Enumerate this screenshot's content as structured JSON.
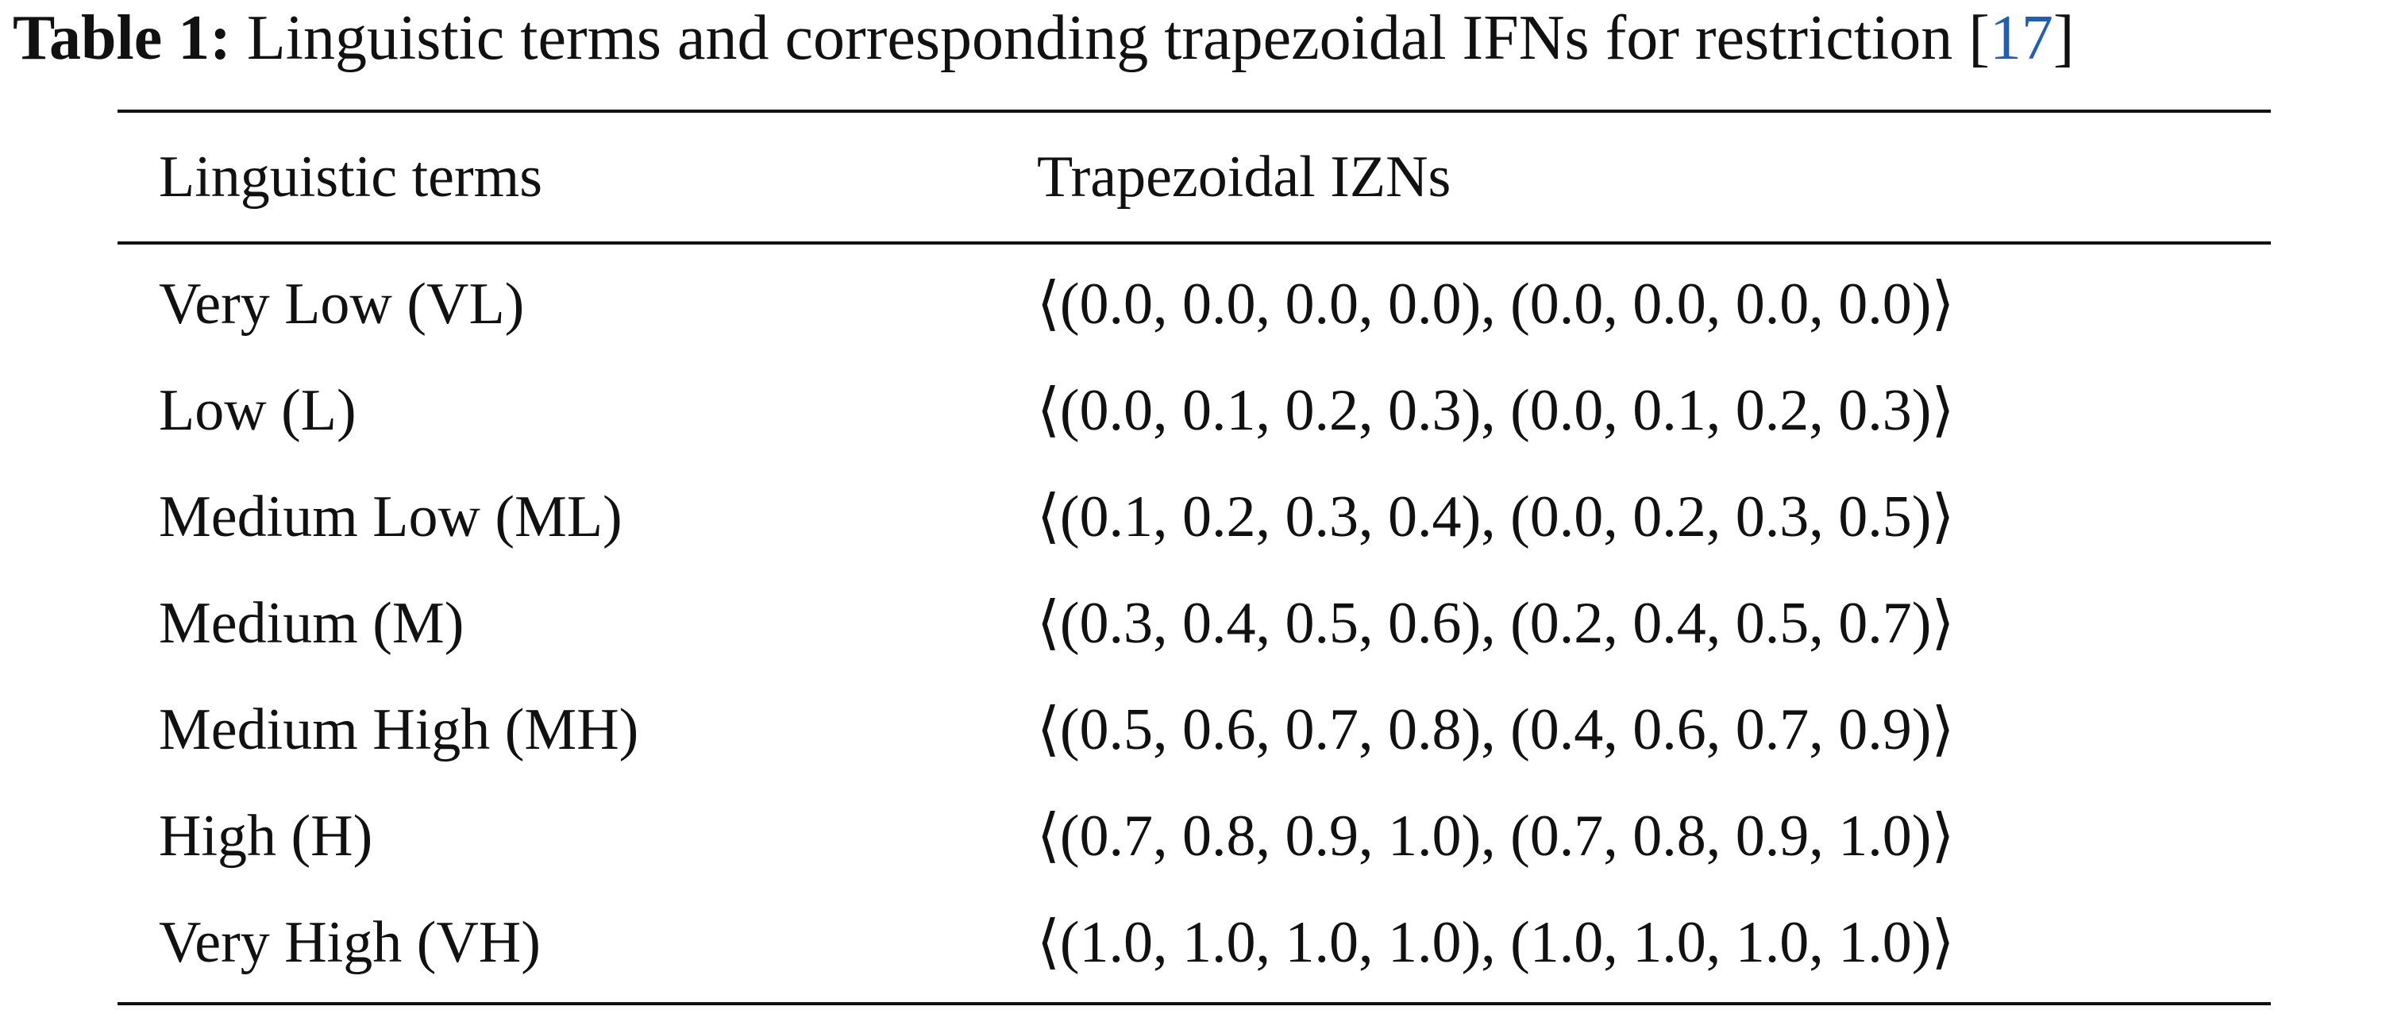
{
  "caption": {
    "label": "Table 1:",
    "text": "Linguistic terms and corresponding trapezoidal IFNs for restriction",
    "cite_open": "[",
    "cite_ref": "17",
    "cite_close": "]"
  },
  "table": {
    "headers": [
      "Linguistic terms",
      "Trapezoidal IZNs"
    ],
    "rows": [
      {
        "term": "Very Low (VL)",
        "value": "⟨(0.0, 0.0, 0.0, 0.0), (0.0, 0.0, 0.0, 0.0)⟩"
      },
      {
        "term": "Low (L)",
        "value": "⟨(0.0, 0.1, 0.2, 0.3), (0.0, 0.1, 0.2, 0.3)⟩"
      },
      {
        "term": "Medium Low (ML)",
        "value": "⟨(0.1, 0.2, 0.3, 0.4), (0.0, 0.2, 0.3, 0.5)⟩"
      },
      {
        "term": "Medium (M)",
        "value": "⟨(0.3, 0.4, 0.5, 0.6), (0.2, 0.4, 0.5, 0.7)⟩"
      },
      {
        "term": "Medium High (MH)",
        "value": "⟨(0.5, 0.6, 0.7, 0.8), (0.4, 0.6, 0.7, 0.9)⟩"
      },
      {
        "term": "High (H)",
        "value": "⟨(0.7, 0.8, 0.9, 1.0), (0.7, 0.8, 0.9, 1.0)⟩"
      },
      {
        "term": "Very High (VH)",
        "value": "⟨(1.0, 1.0, 1.0, 1.0), (1.0, 1.0, 1.0, 1.0)⟩"
      }
    ]
  },
  "colors": {
    "citation_link": "#1f5fb4",
    "text": "#111111"
  }
}
